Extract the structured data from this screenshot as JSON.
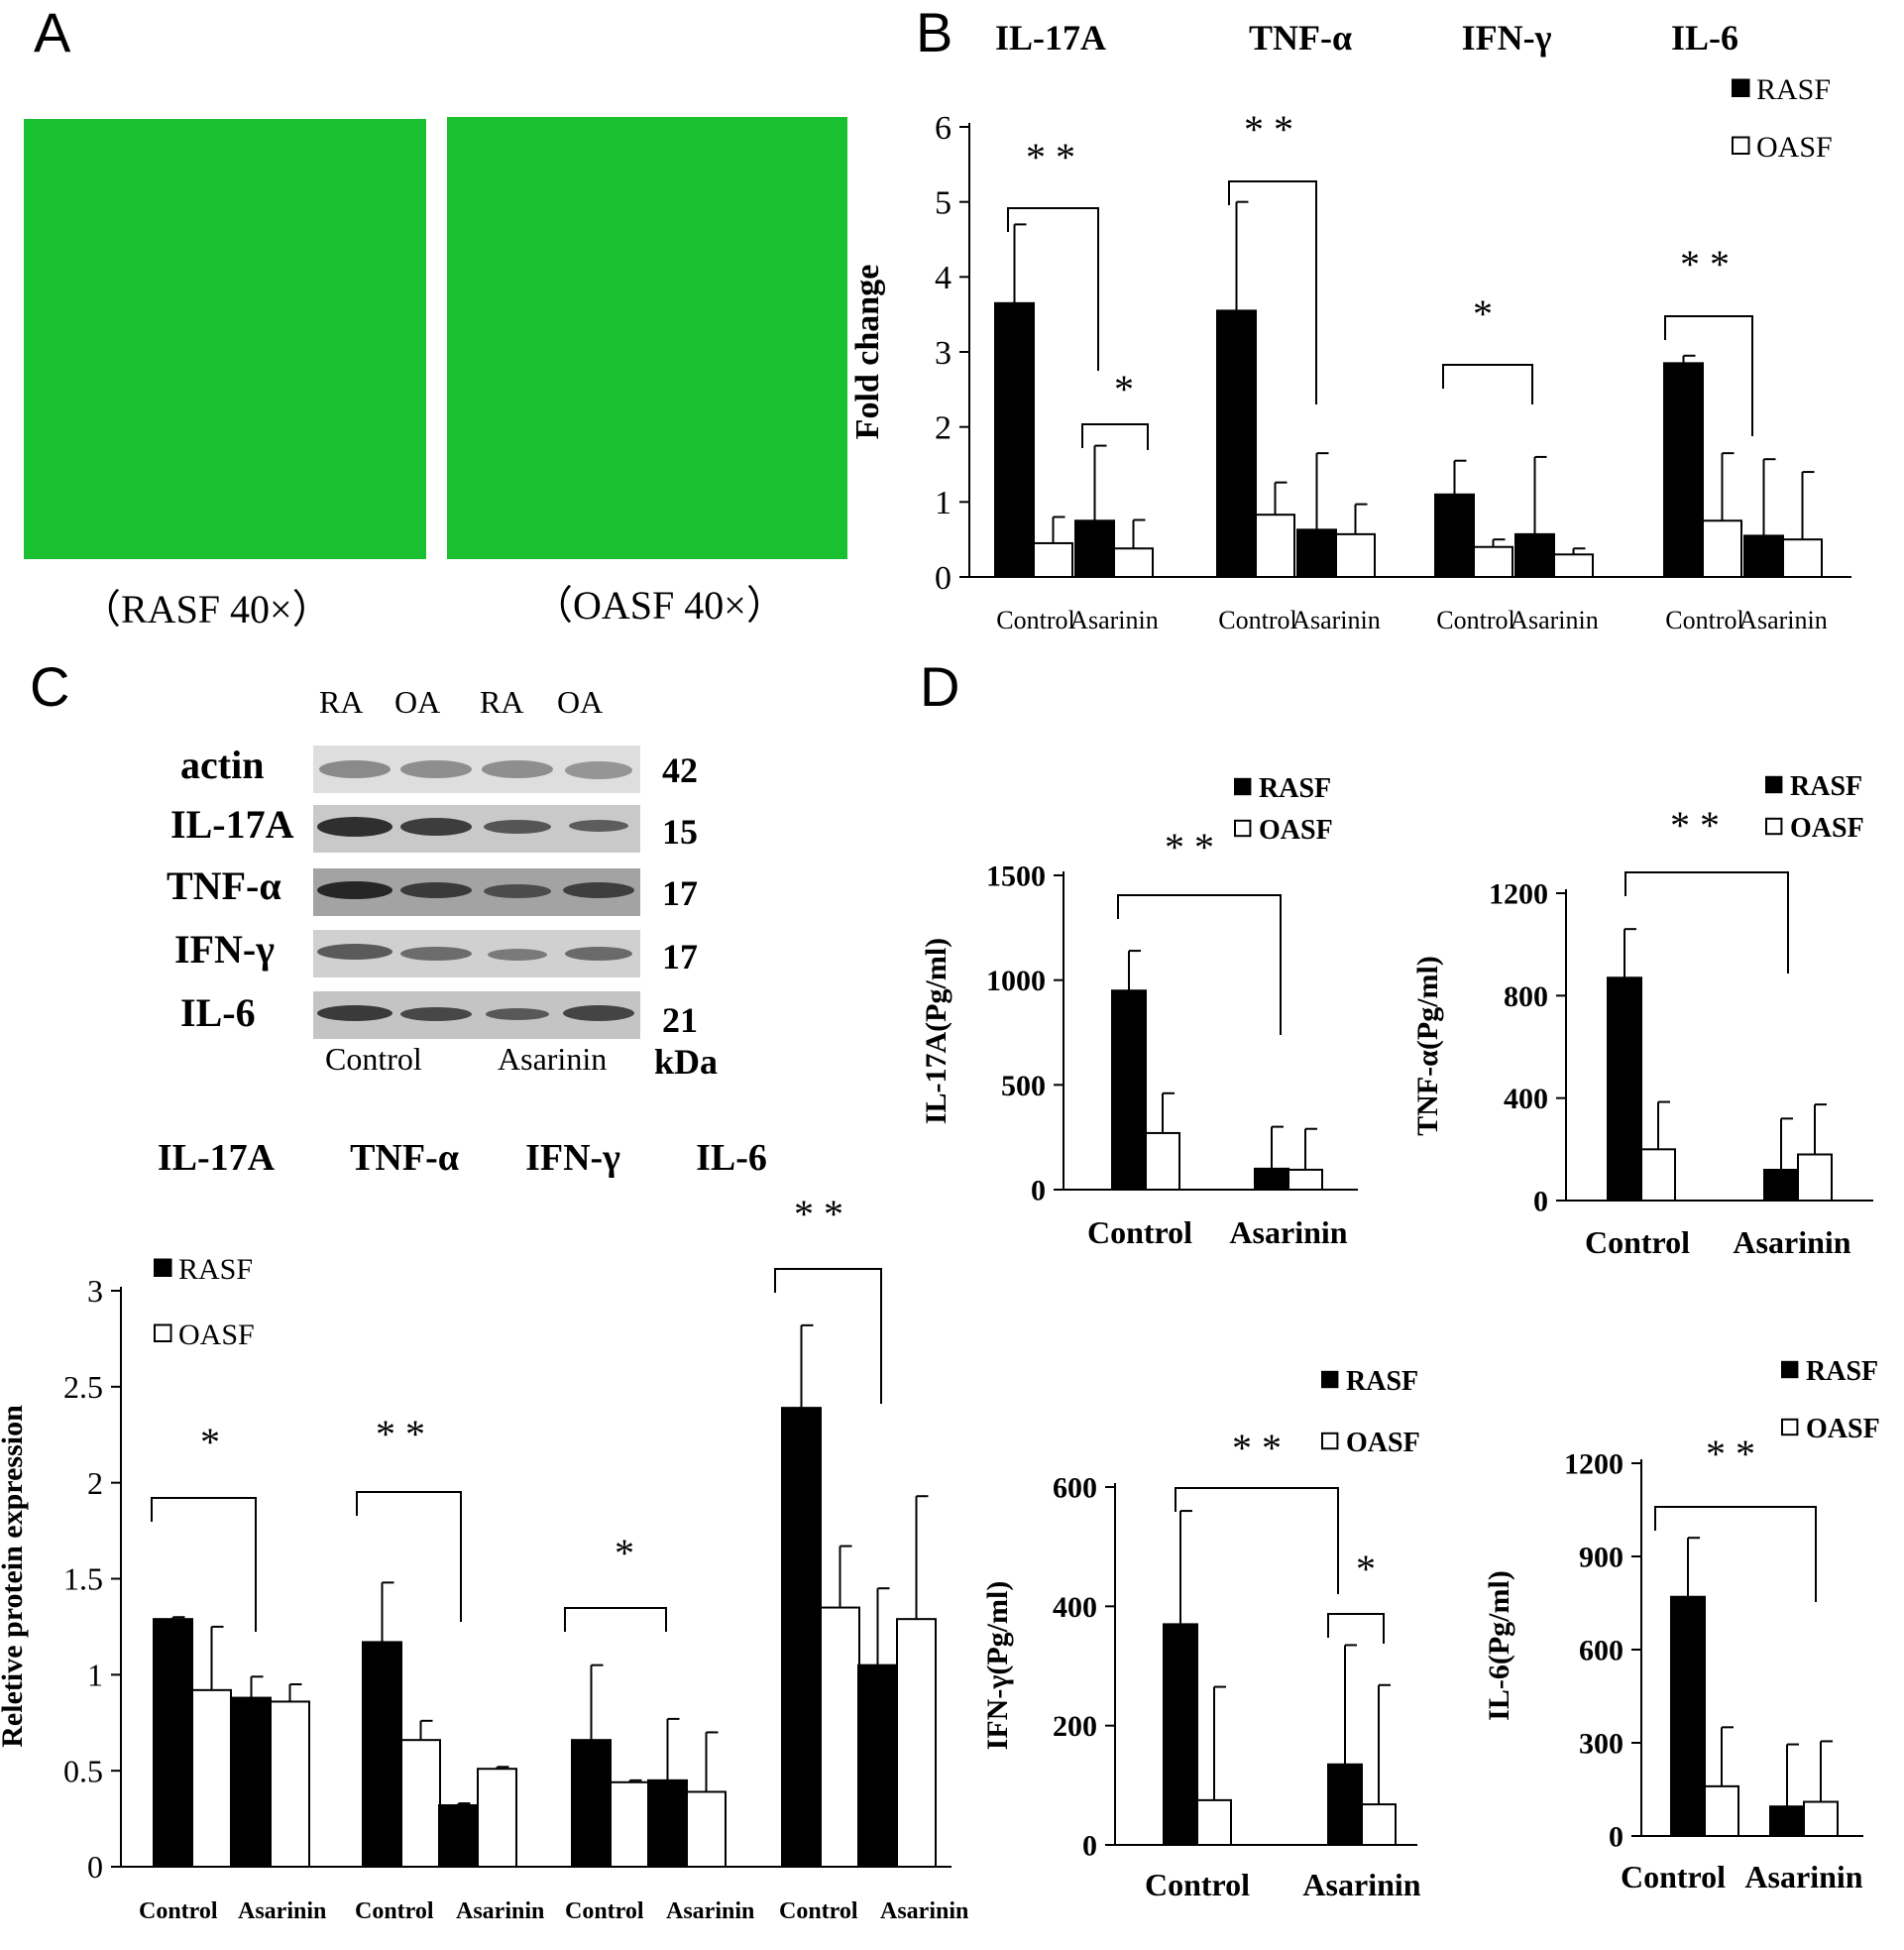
{
  "panels": {
    "a": "A",
    "b": "B",
    "c": "C",
    "d": "D"
  },
  "micrographs": {
    "left_caption": "（RASF 40×）",
    "right_caption": "（OASF 40×）",
    "fill_color": "#19c030"
  },
  "blot": {
    "lane_headers": [
      "RA",
      "OA",
      "RA",
      "OA"
    ],
    "rows": [
      {
        "label": "actin",
        "kda": "42"
      },
      {
        "label": "IL-17A",
        "kda": "15"
      },
      {
        "label": "TNF-α",
        "kda": "17"
      },
      {
        "label": "IFN-γ",
        "kda": "17"
      },
      {
        "label": "IL-6",
        "kda": "21"
      }
    ],
    "group_labels": [
      "Control",
      "Asarinin"
    ],
    "unit": "kDa"
  },
  "colors": {
    "rasf": "#000000",
    "oasf": "#ffffff"
  },
  "chart_data": [
    {
      "id": "B",
      "type": "bar",
      "group_titles": [
        "IL-17A",
        "TNF-α",
        "IFN-γ",
        "IL-6"
      ],
      "categories": [
        "Control",
        "Asarinin"
      ],
      "ylabel": "Fold change",
      "ylim": [
        0,
        6
      ],
      "yticks": [
        "0",
        "1",
        "2",
        "3",
        "4",
        "5",
        "6"
      ],
      "legend": [
        "RASF",
        "OASF"
      ],
      "legend_position": "top-right",
      "series": [
        {
          "name": "RASF",
          "values": [
            [
              3.65,
              0.75
            ],
            [
              3.55,
              0.63
            ],
            [
              1.1,
              0.57
            ],
            [
              2.85,
              0.55
            ]
          ],
          "errors": [
            [
              1.05,
              1.0
            ],
            [
              1.45,
              1.02
            ],
            [
              0.45,
              1.03
            ],
            [
              0.1,
              1.02
            ]
          ]
        },
        {
          "name": "OASF",
          "values": [
            [
              0.45,
              0.38
            ],
            [
              0.83,
              0.57
            ],
            [
              0.4,
              0.3
            ],
            [
              0.75,
              0.5
            ]
          ],
          "errors": [
            [
              0.35,
              0.38
            ],
            [
              0.43,
              0.4
            ],
            [
              0.1,
              0.08
            ],
            [
              0.9,
              0.9
            ]
          ]
        }
      ],
      "significance": [
        "* *",
        "*",
        "* *",
        "*",
        "* *"
      ]
    },
    {
      "id": "C",
      "type": "bar",
      "group_titles": [
        "IL-17A",
        "TNF-α",
        "IFN-γ",
        "IL-6"
      ],
      "categories": [
        "Control",
        "Asarinin"
      ],
      "ylabel": "Reletive protein expression",
      "ylim": [
        0,
        3
      ],
      "yticks": [
        "0",
        "0.5",
        "1",
        "1.5",
        "2",
        "2.5",
        "3"
      ],
      "legend": [
        "RASF",
        "OASF"
      ],
      "legend_position": "top-left",
      "series": [
        {
          "name": "RASF",
          "values": [
            [
              1.29,
              0.88
            ],
            [
              1.17,
              0.32
            ],
            [
              0.66,
              0.45
            ],
            [
              2.39,
              1.05
            ]
          ],
          "errors": [
            [
              0.01,
              0.11
            ],
            [
              0.31,
              0.01
            ],
            [
              0.39,
              0.32
            ],
            [
              0.43,
              0.4
            ]
          ]
        },
        {
          "name": "OASF",
          "values": [
            [
              0.92,
              0.86
            ],
            [
              0.66,
              0.51
            ],
            [
              0.44,
              0.39
            ],
            [
              1.35,
              1.29
            ]
          ],
          "errors": [
            [
              0.33,
              0.09
            ],
            [
              0.1,
              0.01
            ],
            [
              0.01,
              0.31
            ],
            [
              0.32,
              0.64
            ]
          ]
        }
      ],
      "significance": [
        "*",
        "* *",
        "*",
        "* *"
      ]
    },
    {
      "id": "D1",
      "type": "bar",
      "categories": [
        "Control",
        "Asarinin"
      ],
      "ylabel": "IL-17A(Pg/ml)",
      "ylim": [
        0,
        1500
      ],
      "yticks": [
        "0",
        "500",
        "1000",
        "1500"
      ],
      "legend": [
        "RASF",
        "OASF"
      ],
      "series": [
        {
          "name": "RASF",
          "values": [
            950,
            100
          ],
          "errors": [
            190,
            200
          ]
        },
        {
          "name": "OASF",
          "values": [
            270,
            95
          ],
          "errors": [
            190,
            195
          ]
        }
      ],
      "significance": [
        "* *"
      ]
    },
    {
      "id": "D2",
      "type": "bar",
      "categories": [
        "Control",
        "Asarinin"
      ],
      "ylabel": "TNF-α(Pg/ml)",
      "ylim": [
        0,
        1200
      ],
      "yticks": [
        "0",
        "400",
        "800",
        "1200"
      ],
      "legend": [
        "RASF",
        "OASF"
      ],
      "series": [
        {
          "name": "RASF",
          "values": [
            870,
            120
          ],
          "errors": [
            190,
            200
          ]
        },
        {
          "name": "OASF",
          "values": [
            200,
            180
          ],
          "errors": [
            185,
            195
          ]
        }
      ],
      "significance": [
        "* *"
      ]
    },
    {
      "id": "D3",
      "type": "bar",
      "categories": [
        "Control",
        "Asarinin"
      ],
      "ylabel": "IFN-γ(Pg/ml)",
      "ylim": [
        0,
        600
      ],
      "yticks": [
        "0",
        "200",
        "400",
        "600"
      ],
      "legend": [
        "RASF",
        "OASF"
      ],
      "series": [
        {
          "name": "RASF",
          "values": [
            370,
            135
          ],
          "errors": [
            190,
            200
          ]
        },
        {
          "name": "OASF",
          "values": [
            75,
            68
          ],
          "errors": [
            190,
            200
          ]
        }
      ],
      "significance": [
        "* *",
        "*"
      ]
    },
    {
      "id": "D4",
      "type": "bar",
      "categories": [
        "Control",
        "Asarinin"
      ],
      "ylabel": "IL-6(Pg/ml)",
      "ylim": [
        0,
        1200
      ],
      "yticks": [
        "0",
        "300",
        "600",
        "900",
        "1200"
      ],
      "legend": [
        "RASF",
        "OASF"
      ],
      "series": [
        {
          "name": "RASF",
          "values": [
            770,
            95
          ],
          "errors": [
            190,
            200
          ]
        },
        {
          "name": "OASF",
          "values": [
            160,
            110
          ],
          "errors": [
            190,
            195
          ]
        }
      ],
      "significance": [
        "* *"
      ]
    }
  ]
}
